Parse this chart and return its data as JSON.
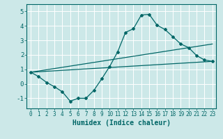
{
  "background_color": "#cce8e8",
  "grid_color": "#ffffff",
  "line_color": "#006666",
  "xlabel": "Humidex (Indice chaleur)",
  "xlabel_fontsize": 7,
  "xlim": [
    -0.5,
    23.5
  ],
  "ylim": [
    -1.7,
    5.5
  ],
  "xticks": [
    0,
    1,
    2,
    3,
    4,
    5,
    6,
    7,
    8,
    9,
    10,
    11,
    12,
    13,
    14,
    15,
    16,
    17,
    18,
    19,
    20,
    21,
    22,
    23
  ],
  "yticks": [
    -1,
    0,
    1,
    2,
    3,
    4,
    5
  ],
  "curve1_x": [
    0,
    1,
    2,
    3,
    4,
    5,
    6,
    7,
    8,
    9,
    10,
    11,
    12,
    13,
    14,
    15,
    16,
    17,
    18,
    19,
    20,
    21,
    22,
    23
  ],
  "curve1_y": [
    0.8,
    0.5,
    0.1,
    -0.2,
    -0.55,
    -1.2,
    -1.0,
    -1.0,
    -0.45,
    0.35,
    1.2,
    2.2,
    3.55,
    3.8,
    4.75,
    4.8,
    4.05,
    3.75,
    3.25,
    2.75,
    2.5,
    1.95,
    1.65,
    1.55
  ],
  "curve2_x": [
    0,
    23
  ],
  "curve2_y": [
    0.8,
    1.55
  ],
  "curve3_x": [
    0,
    23
  ],
  "curve3_y": [
    0.8,
    2.75
  ],
  "tick_fontsize": 5.5,
  "ytick_fontsize": 6.5
}
